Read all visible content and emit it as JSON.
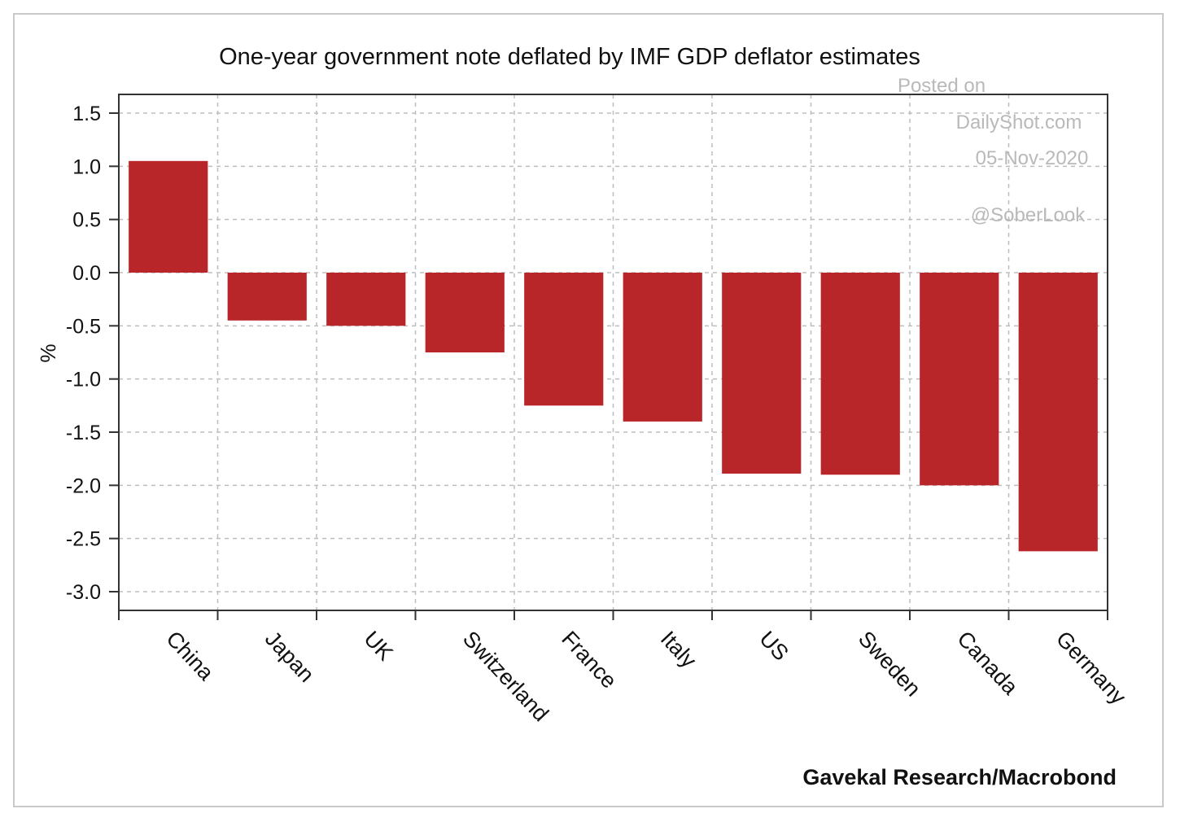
{
  "chart_data": {
    "type": "bar",
    "title": "One-year government note deflated by IMF GDP deflator estimates",
    "ylabel": "%",
    "xlabel": "",
    "ylim": [
      -3.0,
      1.5
    ],
    "yticks": [
      1.5,
      1.0,
      0.5,
      0.0,
      -0.5,
      -1.0,
      -1.5,
      -2.0,
      -2.5,
      -3.0
    ],
    "ytick_labels": [
      "1.5",
      "1.0",
      "0.5",
      "0.0",
      "-0.5",
      "-1.0",
      "-1.5",
      "-2.0",
      "-2.5",
      "-3.0"
    ],
    "grid": true,
    "categories": [
      "China",
      "Japan",
      "UK",
      "Switzerland",
      "France",
      "Italy",
      "US",
      "Sweden",
      "Canada",
      "Germany"
    ],
    "values": [
      1.05,
      -0.45,
      -0.5,
      -0.75,
      -1.25,
      -1.4,
      -1.89,
      -1.9,
      -2.0,
      -2.62
    ],
    "bar_color": "#b8262a",
    "watermark": {
      "line1": "Posted on",
      "line2": "DailyShot.com",
      "line3": "05-Nov-2020",
      "handle": "@SoberLook"
    },
    "source": "Gavekal Research/Macrobond"
  }
}
